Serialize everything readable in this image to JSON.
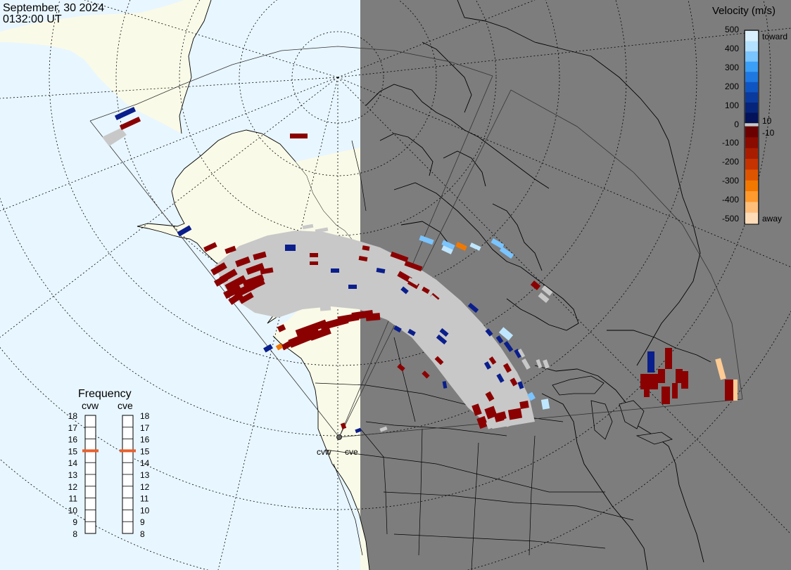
{
  "header": {
    "date": "September, 30 2024",
    "time": "0132:00 UT"
  },
  "velocity_scale": {
    "title": "Velocity (m/s)",
    "tick_labels": [
      "500",
      "400",
      "300",
      "200",
      "100",
      "10",
      "0",
      "-10",
      "-100",
      "-200",
      "-300",
      "-400",
      "-500"
    ],
    "toward_label": "toward",
    "away_label": "away",
    "colors_toward": [
      "#d9f0ff",
      "#b3e0ff",
      "#7ac4ff",
      "#3a9ff5",
      "#1e78e0",
      "#0f55c2",
      "#0a3a9c",
      "#06247a",
      "#031259"
    ],
    "colors_away": [
      "#6b0000",
      "#8a0b00",
      "#a81d00",
      "#c43300",
      "#de5500",
      "#f27800",
      "#ff9a2e",
      "#ffbf7a",
      "#ffdcb8"
    ]
  },
  "frequency": {
    "title": "Frequency",
    "radar_left": "cvw",
    "radar_right": "cve",
    "ticks": [
      "18",
      "17",
      "16",
      "15",
      "14",
      "13",
      "12",
      "11",
      "10",
      "9",
      "8"
    ],
    "selected_left": 15,
    "selected_right": 15
  },
  "site_labels": {
    "left": "cvw",
    "right": "cve"
  },
  "colors": {
    "ocean_day": "#e8f6ff",
    "land_day": "#fafae8",
    "night": "#7d7d7d",
    "ground_scatter": "#c8c8c8",
    "marker_orange": "#e8602c"
  }
}
